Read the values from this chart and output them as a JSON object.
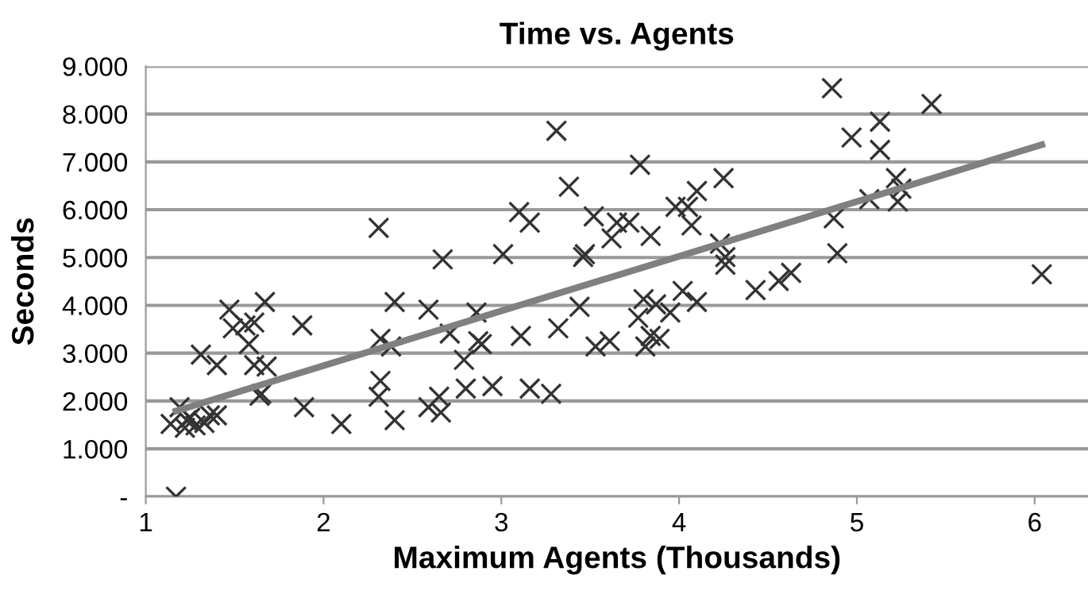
{
  "chart_data": {
    "type": "scatter",
    "title": "Time vs. Agents",
    "xlabel": "Maximum Agents (Thousands)",
    "ylabel": "Seconds",
    "xlim": [
      1,
      6.3
    ],
    "xticks": [
      1,
      2,
      3,
      4,
      5,
      6
    ],
    "ylim": [
      0,
      9000
    ],
    "yticks": [
      {
        "value": 0,
        "label": "-"
      },
      {
        "value": 1000,
        "label": "1.000"
      },
      {
        "value": 2000,
        "label": "2.000"
      },
      {
        "value": 3000,
        "label": "3.000"
      },
      {
        "value": 4000,
        "label": "4.000"
      },
      {
        "value": 5000,
        "label": "5.000"
      },
      {
        "value": 6000,
        "label": "6.000"
      },
      {
        "value": 7000,
        "label": "7.000"
      },
      {
        "value": 8000,
        "label": "8.000"
      },
      {
        "value": 9000,
        "label": "9.000"
      }
    ],
    "grid": "y",
    "legend": false,
    "series": [
      {
        "color": "#333333",
        "marker": "cross",
        "x": [
          1.17,
          1.14,
          1.19,
          1.22,
          1.25,
          1.28,
          1.33,
          1.36,
          1.4,
          1.23,
          1.31,
          1.4,
          1.47,
          1.49,
          1.56,
          1.61,
          1.58,
          1.61,
          1.68,
          1.67,
          1.65,
          1.64,
          1.88,
          1.89,
          2.1,
          2.31,
          2.32,
          2.32,
          2.31,
          2.4,
          2.38,
          2.4,
          2.59,
          2.59,
          2.65,
          2.67,
          2.66,
          2.71,
          2.79,
          2.8,
          2.86,
          2.87,
          2.89,
          2.95,
          3.01,
          3.1,
          3.16,
          3.11,
          3.16,
          3.28,
          3.32,
          3.31,
          3.38,
          3.44,
          3.46,
          3.47,
          3.52,
          3.53,
          3.61,
          3.62,
          3.65,
          3.72,
          3.78,
          3.84,
          3.77,
          3.8,
          3.81,
          3.84,
          3.89,
          3.87,
          3.95,
          3.98,
          4.05,
          4.1,
          4.07,
          4.02,
          4.1,
          4.25,
          4.23,
          4.26,
          4.26,
          4.43,
          4.56,
          4.63,
          4.86,
          4.87,
          4.89,
          4.97,
          5.13,
          5.13,
          5.07,
          5.22,
          5.25,
          5.23,
          5.42,
          6.04
        ],
        "values": [
          0,
          1520,
          1870,
          1440,
          1650,
          1490,
          1540,
          1700,
          1700,
          1600,
          2970,
          2750,
          3910,
          3520,
          3580,
          3640,
          3190,
          2750,
          2720,
          4070,
          2150,
          2110,
          3580,
          1870,
          1520,
          5620,
          3300,
          2420,
          2090,
          4070,
          3140,
          1600,
          3910,
          1870,
          2090,
          4960,
          1760,
          3410,
          2860,
          2260,
          3850,
          3250,
          3190,
          2310,
          5070,
          5950,
          5730,
          3360,
          2260,
          2150,
          3520,
          7650,
          6480,
          3970,
          5010,
          5070,
          5860,
          3140,
          3250,
          5400,
          5730,
          5730,
          6940,
          5450,
          3740,
          4130,
          3140,
          3360,
          3300,
          4020,
          3850,
          6060,
          6060,
          6390,
          5670,
          4300,
          4070,
          6660,
          5290,
          5010,
          4850,
          4320,
          4510,
          4680,
          8540,
          5820,
          5090,
          7510,
          7840,
          7250,
          6220,
          6660,
          6440,
          6170,
          8210,
          4650
        ]
      },
      {
        "type": "line",
        "color": "#808080",
        "marker": "none",
        "x": [
          1.17,
          6.04
        ],
        "values": [
          1790,
          7360
        ]
      }
    ]
  }
}
